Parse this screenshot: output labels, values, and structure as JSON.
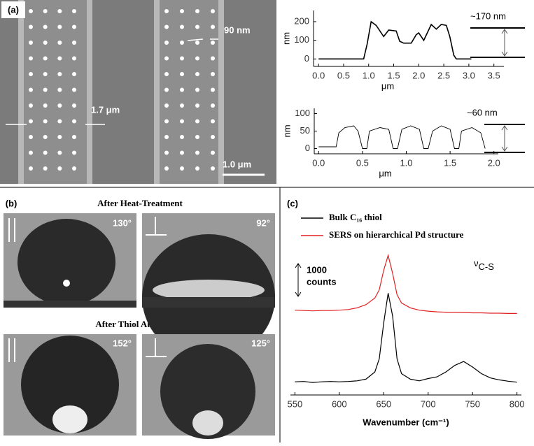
{
  "panel_labels": [
    "(a)",
    "(b)",
    "(c)"
  ],
  "sem": {
    "pore_label": "90 nm",
    "width_label": "1.7 μm",
    "scale_label": "1.0 μm"
  },
  "droplets": {
    "headings": [
      "After Heat-Treatment",
      "After Thiol Absorption"
    ],
    "angles": [
      "130°",
      "92°",
      "152°",
      "125°"
    ]
  },
  "chart_data": [
    {
      "type": "line",
      "xlabel": "μm",
      "ylabel": "nm",
      "annotation": "~170 nm",
      "color": "#000000",
      "x": [
        0,
        0.9,
        0.97,
        1.05,
        1.15,
        1.3,
        1.4,
        1.55,
        1.62,
        1.7,
        1.85,
        1.95,
        2.0,
        2.1,
        2.25,
        2.35,
        2.45,
        2.55,
        2.62,
        2.7,
        2.75,
        3.05
      ],
      "values": [
        0,
        0,
        80,
        200,
        180,
        120,
        155,
        150,
        95,
        85,
        85,
        130,
        140,
        100,
        185,
        160,
        185,
        180,
        120,
        20,
        0,
        0
      ],
      "xlim": [
        -0.1,
        3.7
      ],
      "ylim": [
        -40,
        260
      ],
      "xticks": [
        {
          "value": 0,
          "label": "0.0"
        },
        {
          "value": 0.5,
          "label": "0.5"
        },
        {
          "value": 1,
          "label": "1.0"
        },
        {
          "value": 1.5,
          "label": "1.5"
        },
        {
          "value": 2,
          "label": "2.0"
        },
        {
          "value": 2.5,
          "label": "2.5"
        },
        {
          "value": 3,
          "label": "3.0"
        },
        {
          "value": 3.5,
          "label": "3.5"
        }
      ],
      "yticks": [
        0,
        100,
        200
      ]
    },
    {
      "type": "line",
      "xlabel": "μm",
      "ylabel": "nm",
      "annotation": "~60 nm",
      "color": "#000000",
      "x": [
        0,
        0.2,
        0.23,
        0.3,
        0.4,
        0.45,
        0.5,
        0.55,
        0.58,
        0.7,
        0.8,
        0.85,
        0.9,
        0.95,
        1.05,
        1.15,
        1.2,
        1.25,
        1.3,
        1.4,
        1.5,
        1.55,
        1.6,
        1.63,
        1.75,
        1.85,
        1.9
      ],
      "values": [
        5,
        5,
        45,
        60,
        65,
        50,
        0,
        0,
        50,
        60,
        55,
        0,
        0,
        55,
        65,
        55,
        0,
        0,
        50,
        65,
        55,
        0,
        0,
        50,
        60,
        45,
        0
      ],
      "xlim": [
        -0.05,
        2.05
      ],
      "ylim": [
        -15,
        115
      ],
      "xticks": [
        {
          "value": 0,
          "label": "0.0"
        },
        {
          "value": 0.5,
          "label": "0.5"
        },
        {
          "value": 1,
          "label": "1.0"
        },
        {
          "value": 1.5,
          "label": "1.5"
        },
        {
          "value": 2,
          "label": "2.0"
        }
      ],
      "yticks": [
        0,
        50,
        100
      ]
    },
    {
      "type": "line",
      "xlabel": "Wavenumber (cm⁻¹)",
      "annotation": {
        "symbol": "ν",
        "subscript": "C-S"
      },
      "scale_bar": {
        "value": 1000,
        "unit": "counts"
      },
      "x": [
        550,
        560,
        570,
        580,
        590,
        600,
        610,
        620,
        630,
        640,
        645,
        650,
        655,
        660,
        665,
        670,
        680,
        690,
        700,
        710,
        720,
        730,
        740,
        750,
        760,
        770,
        780,
        790,
        800
      ],
      "series": [
        {
          "name": "Bulk C₁₆ thiol",
          "color": "#000000",
          "values": [
            0,
            10,
            -20,
            0,
            10,
            0,
            10,
            30,
            80,
            300,
            700,
            1800,
            2700,
            2000,
            700,
            250,
            80,
            30,
            100,
            150,
            300,
            500,
            620,
            450,
            250,
            120,
            60,
            20,
            -10
          ]
        },
        {
          "name": "SERS on hierarchical Pd structure",
          "color": "#e02020",
          "values": [
            2180,
            2170,
            2160,
            2170,
            2170,
            2180,
            2200,
            2250,
            2350,
            2550,
            2800,
            3400,
            3850,
            3300,
            2650,
            2400,
            2250,
            2180,
            2150,
            2130,
            2120,
            2120,
            2110,
            2100,
            2100,
            2090,
            2090,
            2080,
            2080
          ]
        }
      ],
      "xlim": [
        545,
        805
      ],
      "ylim": [
        -400,
        4600
      ],
      "xticks": [
        550,
        600,
        650,
        700,
        750,
        800
      ]
    }
  ]
}
